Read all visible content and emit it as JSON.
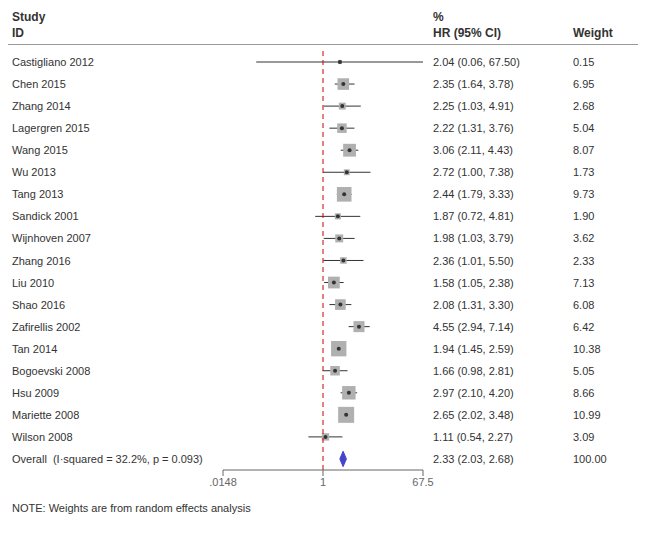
{
  "chart_data": {
    "type": "forest",
    "log": "x",
    "grid": false,
    "categories": [
      "Castigliano 2012",
      "Chen 2015",
      "Zhang 2014",
      "Lagergren 2015",
      "Wang 2015",
      "Wu 2013",
      "Tang 2013",
      "Sandick 2001",
      "Wijnhoven 2007",
      "Zhang 2016",
      "Liu 2010",
      "Shao 2016",
      "Zafirellis 2002",
      "Tan 2014",
      "Bogoevski 2008",
      "Hsu 2009",
      "Mariette 2008",
      "Wilson 2008"
    ],
    "values": [
      2.04,
      2.35,
      2.25,
      2.22,
      3.06,
      2.72,
      2.44,
      1.87,
      1.98,
      2.36,
      1.58,
      2.08,
      4.55,
      1.94,
      1.66,
      2.97,
      2.65,
      1.11
    ],
    "ci_lo": [
      0.06,
      1.64,
      1.03,
      1.31,
      2.11,
      1.0,
      1.79,
      0.72,
      1.03,
      1.01,
      1.05,
      1.31,
      2.94,
      1.45,
      0.98,
      2.1,
      2.02,
      0.54
    ],
    "ci_hi": [
      67.5,
      3.78,
      4.91,
      3.76,
      4.43,
      7.38,
      3.33,
      4.81,
      3.79,
      5.5,
      2.38,
      3.3,
      7.14,
      2.59,
      2.81,
      4.2,
      3.48,
      2.27
    ],
    "value_labels": [
      "2.04 (0.06, 67.50)",
      "2.35 (1.64, 3.78)",
      "2.25 (1.03, 4.91)",
      "2.22 (1.31, 3.76)",
      "3.06 (2.11, 4.43)",
      "2.72 (1.00, 7.38)",
      "2.44 (1.79, 3.33)",
      "1.87 (0.72, 4.81)",
      "1.98 (1.03, 3.79)",
      "2.36 (1.01, 5.50)",
      "1.58 (1.05, 2.38)",
      "2.08 (1.31, 3.30)",
      "4.55 (2.94, 7.14)",
      "1.94 (1.45, 2.59)",
      "1.66 (0.98, 2.81)",
      "2.97 (2.10, 4.20)",
      "2.65 (2.02, 3.48)",
      "1.11 (0.54, 2.27)"
    ],
    "weights": [
      0.15,
      6.95,
      2.68,
      5.04,
      8.07,
      1.73,
      9.73,
      1.9,
      3.62,
      2.33,
      7.13,
      6.08,
      6.42,
      10.38,
      5.05,
      8.66,
      10.99,
      3.09
    ],
    "weight_labels": [
      "0.15",
      "6.95",
      "2.68",
      "5.04",
      "8.07",
      "1.73",
      "9.73",
      "1.90",
      "3.62",
      "2.33",
      "7.13",
      "6.08",
      "6.42",
      "10.38",
      "5.05",
      "8.66",
      "10.99",
      "3.09"
    ],
    "color": "#b0b0b0",
    "overall": {
      "label": "Overall  (I·squared = 32.2%, p = 0.093)",
      "value": 2.33,
      "ci_lo": 2.03,
      "ci_hi": 2.68,
      "value_label": "2.33 (2.03, 2.68)",
      "weight": 100,
      "weight_label": "100.00",
      "color": "#4444cc"
    },
    "headers": {
      "study": "Study",
      "id": "ID",
      "pct": "%",
      "hr": "HR (95% CI)",
      "weight": "Weight"
    },
    "note": "NOTE: Weights are from random effects analysis",
    "reference_line": {
      "value": 1,
      "color": "#cc0000",
      "line_style": "dashed"
    },
    "xlim": [
      0.0148,
      67.5
    ],
    "xticks": [
      {
        "value": 0.0148,
        "label": ".0148"
      },
      1,
      67.5
    ]
  }
}
